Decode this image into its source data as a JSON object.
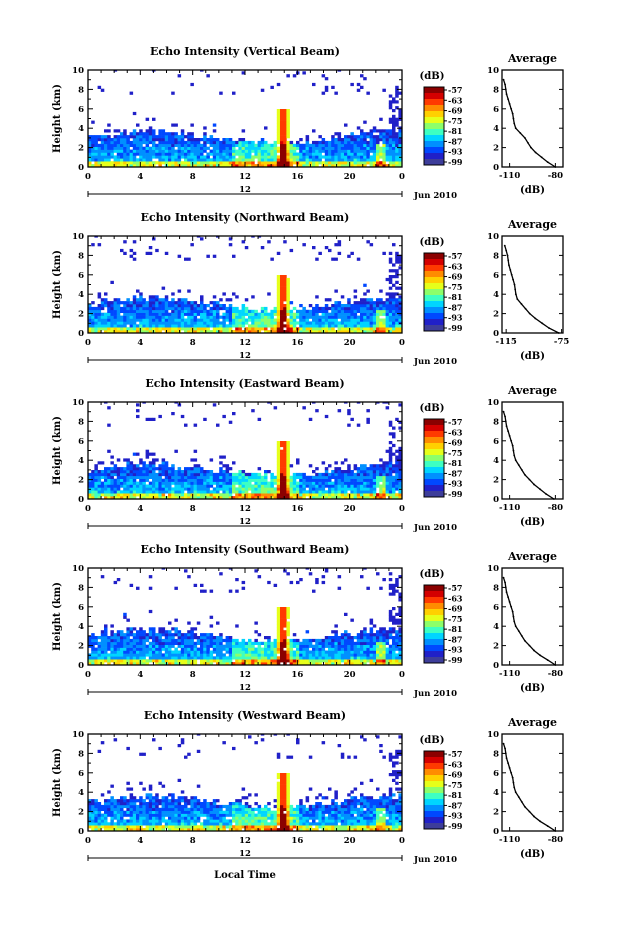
{
  "figure": {
    "xlabel": "Local Time",
    "date_label": "Jun 2010",
    "midday_label": "12",
    "colorbar_unit": "(dB)",
    "colorbar_ticks": [
      "-57",
      "-63",
      "-69",
      "-75",
      "-81",
      "-87",
      "-93",
      "-99"
    ]
  },
  "chart_data": [
    {
      "type": "heatmap",
      "title": "Echo Intensity (Vertical Beam)",
      "ylabel": "Height (km)",
      "x_ticks": [
        "0",
        "4",
        "8",
        "12",
        "16",
        "20",
        "0"
      ],
      "y_ticks": [
        "0",
        "2",
        "4",
        "6",
        "8",
        "10"
      ],
      "xlim": [
        0,
        24
      ],
      "ylim": [
        0,
        10
      ],
      "clim": [
        -99,
        -57
      ],
      "colorbar_label": "(dB)",
      "profile": {
        "title": "Average",
        "xlabel": "(dB)",
        "x_ticks": [
          "-110",
          "-80"
        ],
        "xlim": [
          -115,
          -75
        ],
        "y_ticks": [
          "0",
          "2",
          "4",
          "6",
          "8",
          "10"
        ],
        "ylim": [
          0,
          10
        ],
        "heights": [
          0,
          0.5,
          1,
          1.5,
          2,
          2.5,
          3,
          3.5,
          4,
          4.5,
          5,
          5.5,
          6,
          6.5,
          7,
          7.5,
          8,
          8.5,
          9
        ],
        "values": [
          -80,
          -85,
          -89,
          -93,
          -96,
          -98,
          -100,
          -103,
          -106,
          -107,
          -107.5,
          -108,
          -109,
          -110,
          -111,
          -112,
          -112.5,
          -113,
          -114
        ]
      }
    },
    {
      "type": "heatmap",
      "title": "Echo Intensity (Northward Beam)",
      "ylabel": "Height (km)",
      "x_ticks": [
        "0",
        "4",
        "8",
        "12",
        "16",
        "20",
        "0"
      ],
      "y_ticks": [
        "0",
        "2",
        "4",
        "6",
        "8",
        "10"
      ],
      "xlim": [
        0,
        24
      ],
      "ylim": [
        0,
        10
      ],
      "clim": [
        -99,
        -57
      ],
      "colorbar_label": "(dB)",
      "profile": {
        "title": "Average",
        "xlabel": "(dB)",
        "x_ticks": [
          "-115",
          "-75"
        ],
        "xlim": [
          -118,
          -74
        ],
        "y_ticks": [
          "0",
          "2",
          "4",
          "6",
          "8",
          "10"
        ],
        "ylim": [
          0,
          10
        ],
        "heights": [
          0,
          0.5,
          1,
          1.5,
          2,
          2.5,
          3,
          3.5,
          4,
          4.5,
          5,
          5.5,
          6,
          6.5,
          7,
          7.5,
          8,
          8.5,
          9
        ],
        "values": [
          -77,
          -84,
          -89,
          -94,
          -98,
          -101,
          -104,
          -107,
          -108,
          -108.5,
          -109,
          -110,
          -111,
          -112,
          -113,
          -113.5,
          -114,
          -115,
          -116
        ]
      }
    },
    {
      "type": "heatmap",
      "title": "Echo Intensity (Eastward Beam)",
      "ylabel": "Height (km)",
      "x_ticks": [
        "0",
        "4",
        "8",
        "12",
        "16",
        "20",
        "0"
      ],
      "y_ticks": [
        "0",
        "2",
        "4",
        "6",
        "8",
        "10"
      ],
      "xlim": [
        0,
        24
      ],
      "ylim": [
        0,
        10
      ],
      "clim": [
        -99,
        -57
      ],
      "colorbar_label": "(dB)",
      "profile": {
        "title": "Average",
        "xlabel": "(dB)",
        "x_ticks": [
          "-110",
          "-80"
        ],
        "xlim": [
          -115,
          -75
        ],
        "y_ticks": [
          "0",
          "2",
          "4",
          "6",
          "8",
          "10"
        ],
        "ylim": [
          0,
          10
        ],
        "heights": [
          0,
          0.5,
          1,
          1.5,
          2,
          2.5,
          3,
          3.5,
          4,
          4.5,
          5,
          5.5,
          6,
          6.5,
          7,
          7.5,
          8,
          8.5,
          9
        ],
        "values": [
          -81,
          -86,
          -90,
          -94,
          -97,
          -100,
          -102,
          -104,
          -106,
          -107,
          -107.5,
          -108,
          -109,
          -110,
          -111,
          -112,
          -112.5,
          -113,
          -114
        ]
      }
    },
    {
      "type": "heatmap",
      "title": "Echo Intensity (Southward Beam)",
      "ylabel": "Height (km)",
      "x_ticks": [
        "0",
        "4",
        "8",
        "12",
        "16",
        "20",
        "0"
      ],
      "y_ticks": [
        "0",
        "2",
        "4",
        "6",
        "8",
        "10"
      ],
      "xlim": [
        0,
        24
      ],
      "ylim": [
        0,
        10
      ],
      "clim": [
        -99,
        -57
      ],
      "colorbar_label": "(dB)",
      "profile": {
        "title": "Average",
        "xlabel": "(dB)",
        "x_ticks": [
          "-110",
          "-80"
        ],
        "xlim": [
          -115,
          -75
        ],
        "y_ticks": [
          "0",
          "2",
          "4",
          "6",
          "8",
          "10"
        ],
        "ylim": [
          0,
          10
        ],
        "heights": [
          0,
          0.5,
          1,
          1.5,
          2,
          2.5,
          3,
          3.5,
          4,
          4.5,
          5,
          5.5,
          6,
          6.5,
          7,
          7.5,
          8,
          8.5,
          9
        ],
        "values": [
          -80,
          -85,
          -90,
          -94,
          -97,
          -100,
          -102,
          -104,
          -106,
          -107,
          -107.5,
          -108,
          -109,
          -110,
          -111,
          -112,
          -112.5,
          -113,
          -114
        ]
      }
    },
    {
      "type": "heatmap",
      "title": "Echo Intensity (Westward Beam)",
      "ylabel": "Height (km)",
      "x_ticks": [
        "0",
        "4",
        "8",
        "12",
        "16",
        "20",
        "0"
      ],
      "y_ticks": [
        "0",
        "2",
        "4",
        "6",
        "8",
        "10"
      ],
      "xlim": [
        0,
        24
      ],
      "ylim": [
        0,
        10
      ],
      "clim": [
        -99,
        -57
      ],
      "colorbar_label": "(dB)",
      "profile": {
        "title": "Average",
        "xlabel": "(dB)",
        "x_ticks": [
          "-110",
          "-80"
        ],
        "xlim": [
          -115,
          -75
        ],
        "y_ticks": [
          "0",
          "2",
          "4",
          "6",
          "8",
          "10"
        ],
        "ylim": [
          0,
          10
        ],
        "heights": [
          0,
          0.5,
          1,
          1.5,
          2,
          2.5,
          3,
          3.5,
          4,
          4.5,
          5,
          5.5,
          6,
          6.5,
          7,
          7.5,
          8,
          8.5,
          9
        ],
        "values": [
          -80,
          -85,
          -90,
          -94,
          -97,
          -100,
          -102,
          -104,
          -106,
          -107,
          -107.5,
          -108,
          -109,
          -110,
          -111,
          -112,
          -112.5,
          -113,
          -114
        ]
      }
    }
  ]
}
